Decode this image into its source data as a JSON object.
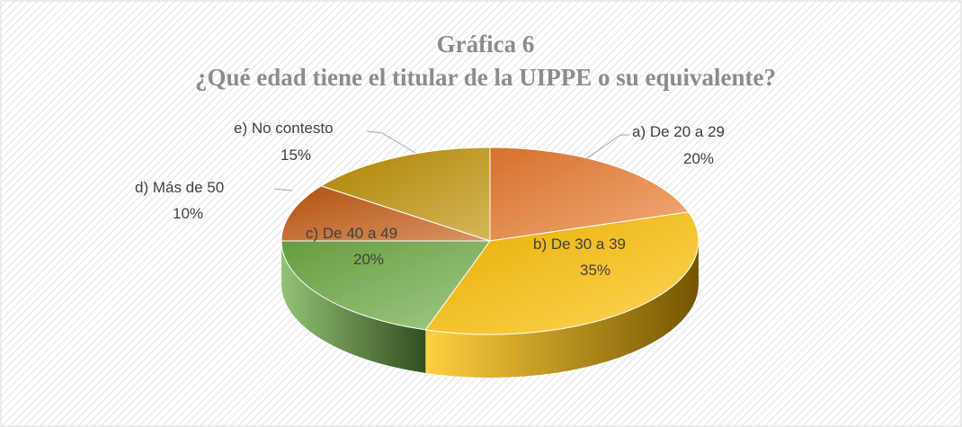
{
  "chart_data": {
    "type": "pie",
    "title": "Gráfica 6",
    "subtitle": "¿Qué edad tiene el titular de la UIPPE o su equivalente?",
    "categories": [
      "a) De 20 a 29",
      "b) De 30 a 39",
      "c) De 40 a 49",
      "d) Más de 50",
      "e) No contesto"
    ],
    "values": [
      20,
      35,
      20,
      10,
      15
    ],
    "value_labels": [
      "20%",
      "35%",
      "20%",
      "10%",
      "15%"
    ],
    "colors": [
      "#ED7D31",
      "#FFC000",
      "#70AD47",
      "#C55A11",
      "#BF9000"
    ]
  }
}
